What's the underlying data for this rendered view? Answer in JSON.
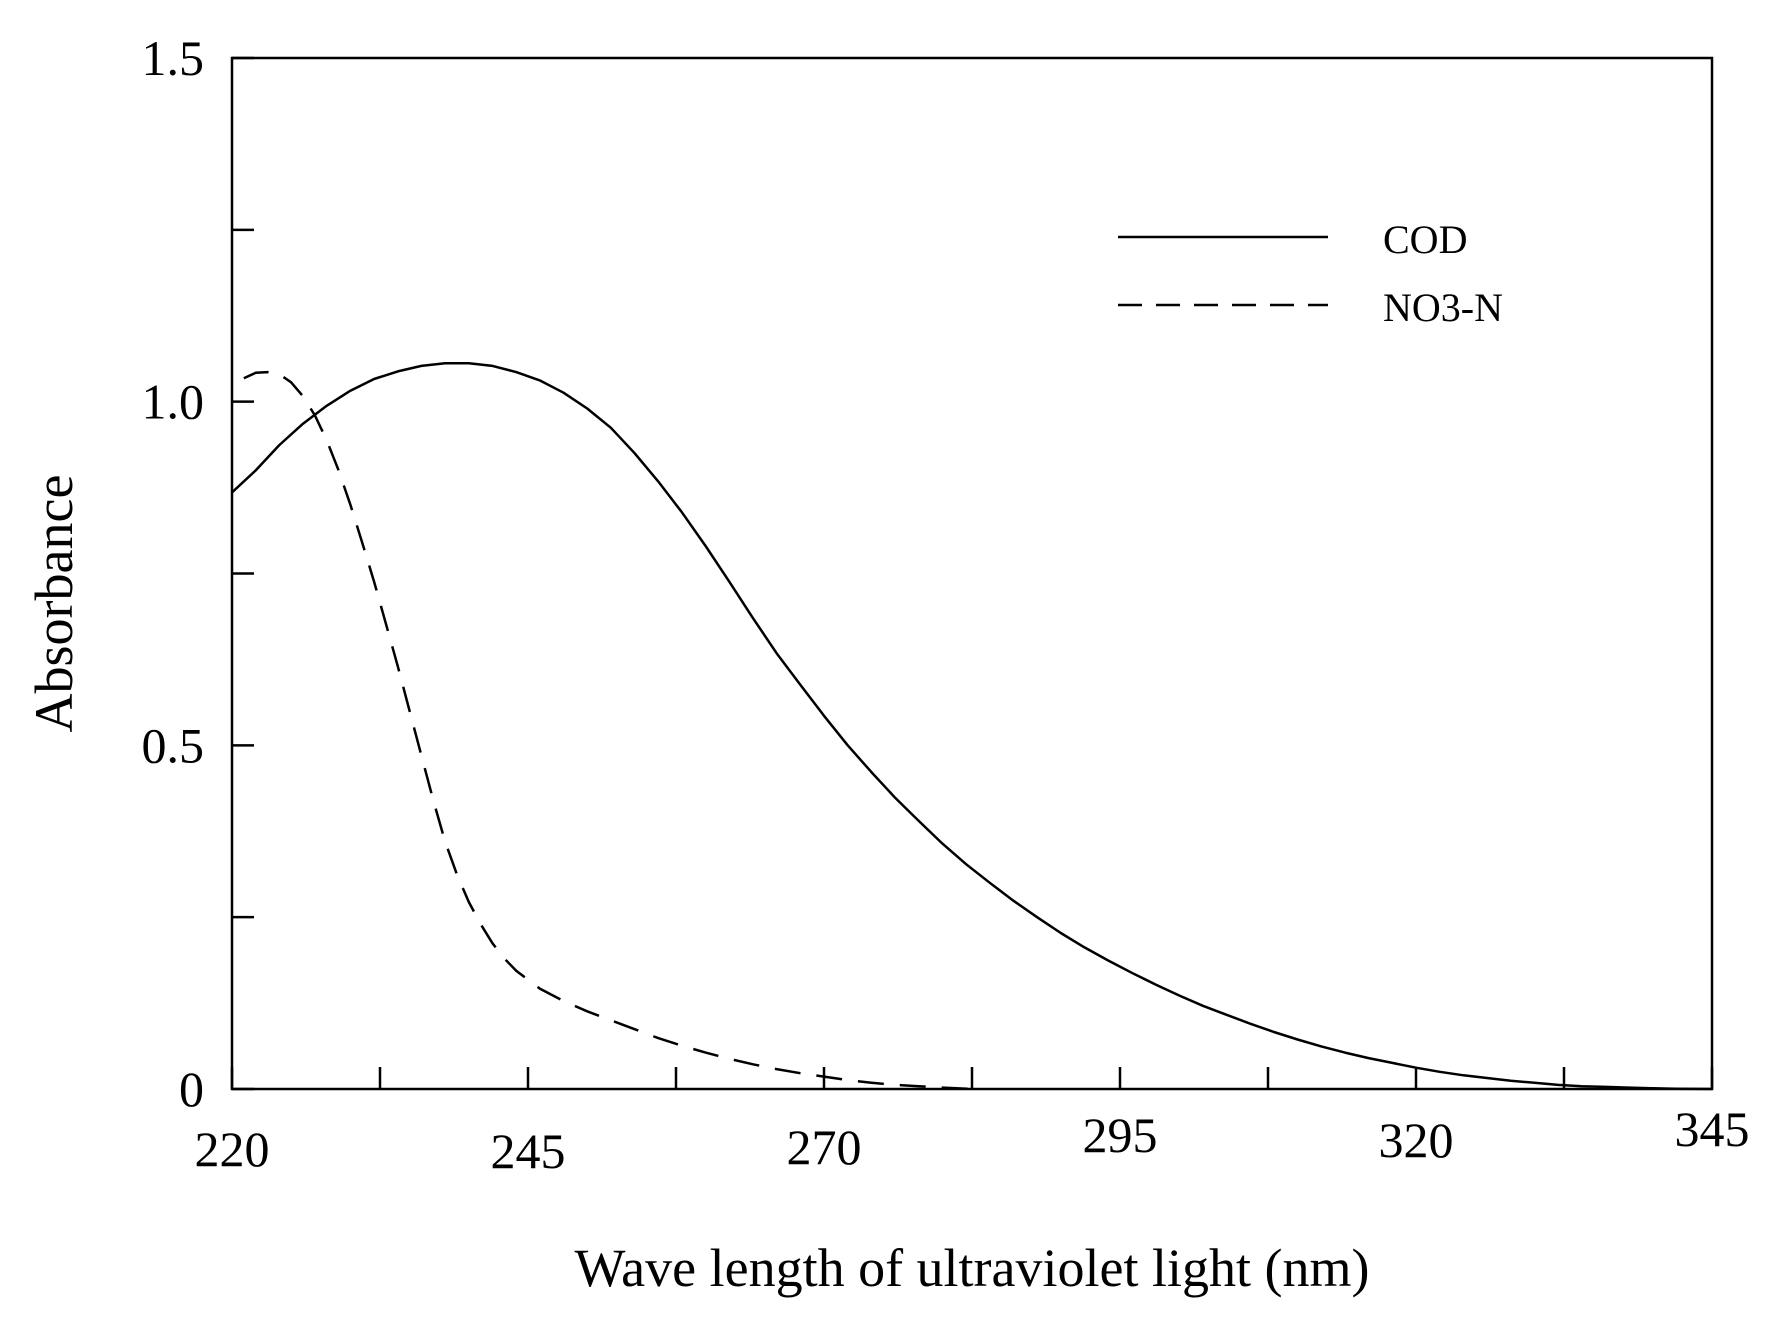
{
  "chart_data": {
    "type": "line",
    "title": "",
    "xlabel": "Wave length of ultraviolet light (nm)",
    "ylabel": "Absorbance",
    "xlim": [
      220,
      345
    ],
    "ylim": [
      0,
      1.5
    ],
    "x_ticks": [
      220,
      232.5,
      245,
      257.5,
      270,
      282.5,
      295,
      307.5,
      320,
      332.5,
      345
    ],
    "x_tick_labels": [
      {
        "value": 220,
        "label": "220"
      },
      {
        "value": 245,
        "label": "245"
      },
      {
        "value": 270,
        "label": "270"
      },
      {
        "value": 295,
        "label": "295"
      },
      {
        "value": 320,
        "label": "320"
      },
      {
        "value": 345,
        "label": "345"
      }
    ],
    "y_ticks": [
      0,
      0.25,
      0.5,
      0.75,
      1.0,
      1.25,
      1.5
    ],
    "y_tick_labels": [
      {
        "value": 0,
        "label": "0"
      },
      {
        "value": 0.5,
        "label": "0.5"
      },
      {
        "value": 1.0,
        "label": "1.0"
      },
      {
        "value": 1.5,
        "label": "1.5"
      }
    ],
    "grid": false,
    "legend_position": "top-right",
    "series": [
      {
        "name": "COD",
        "style": "solid",
        "color": "#000000",
        "x": [
          220,
          222,
          224,
          226,
          228,
          230,
          232,
          234,
          236,
          238,
          240,
          242,
          244,
          246,
          248,
          250,
          252,
          254,
          256,
          258,
          260,
          262,
          264,
          266,
          268,
          270,
          272,
          274,
          276,
          278,
          280,
          282,
          284,
          286,
          288,
          290,
          292,
          294,
          296,
          298,
          300,
          302,
          304,
          306,
          308,
          310,
          312,
          314,
          316,
          318,
          320,
          322,
          324,
          326,
          328,
          330,
          332,
          334,
          336,
          338,
          340,
          342,
          345
        ],
        "y": [
          0.868,
          0.9,
          0.937,
          0.968,
          0.994,
          1.016,
          1.033,
          1.044,
          1.052,
          1.056,
          1.056,
          1.052,
          1.043,
          1.031,
          1.013,
          0.99,
          0.962,
          0.925,
          0.884,
          0.839,
          0.79,
          0.738,
          0.685,
          0.634,
          0.588,
          0.543,
          0.5,
          0.461,
          0.424,
          0.39,
          0.357,
          0.327,
          0.3,
          0.274,
          0.25,
          0.227,
          0.206,
          0.187,
          0.169,
          0.152,
          0.136,
          0.121,
          0.108,
          0.095,
          0.083,
          0.072,
          0.062,
          0.053,
          0.045,
          0.038,
          0.031,
          0.025,
          0.02,
          0.016,
          0.012,
          0.009,
          0.006,
          0.004,
          0.003,
          0.002,
          0.001,
          0.0005,
          0.0
        ]
      },
      {
        "name": "NO3-N",
        "style": "dashed",
        "color": "#000000",
        "x": [
          221,
          222,
          223,
          224,
          225,
          226,
          227,
          228,
          229,
          230,
          231,
          232,
          233,
          234,
          235,
          236,
          237,
          238,
          239,
          240,
          241,
          242,
          243,
          244,
          246,
          248,
          250,
          252,
          254,
          256,
          258,
          260,
          262,
          264,
          266,
          268,
          270,
          272,
          274,
          276,
          278,
          280,
          282.5
        ],
        "y": [
          1.034,
          1.042,
          1.043,
          1.04,
          1.028,
          1.008,
          0.98,
          0.944,
          0.9,
          0.85,
          0.795,
          0.738,
          0.677,
          0.615,
          0.55,
          0.485,
          0.42,
          0.36,
          0.312,
          0.272,
          0.24,
          0.212,
          0.19,
          0.172,
          0.146,
          0.128,
          0.113,
          0.1,
          0.087,
          0.074,
          0.063,
          0.053,
          0.044,
          0.036,
          0.029,
          0.023,
          0.018,
          0.013,
          0.009,
          0.006,
          0.004,
          0.002,
          0.0
        ]
      }
    ]
  }
}
